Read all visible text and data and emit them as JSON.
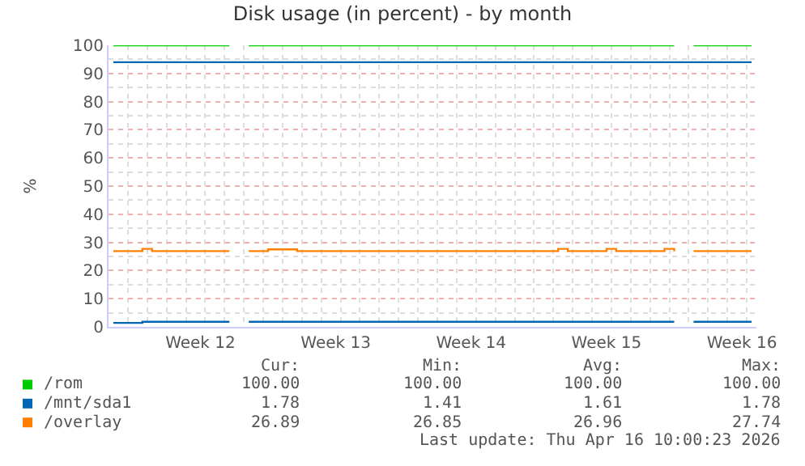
{
  "chart_data": {
    "type": "step",
    "title": "Disk usage (in percent) - by month",
    "ylabel": "%",
    "categories": [
      null,
      null,
      null,
      null,
      null,
      null,
      null,
      null,
      null,
      "Week 12",
      null,
      null,
      null,
      null,
      null,
      null,
      null,
      null,
      null,
      null,
      null,
      null,
      null,
      "Week 13",
      null,
      null,
      null,
      null,
      null,
      null,
      null,
      null,
      null,
      null,
      null,
      null,
      null,
      "Week 14",
      null,
      null,
      null,
      null,
      null,
      null,
      null,
      null,
      null,
      null,
      null,
      null,
      null,
      "Week 15",
      null,
      null,
      null,
      null,
      null,
      null,
      null,
      null,
      null,
      null,
      null,
      null,
      null,
      "Week 16",
      null
    ],
    "series": [
      {
        "name": "/rom",
        "color": "#00cc00",
        "values": [
          100,
          100,
          100,
          100,
          100,
          100,
          100,
          100,
          100,
          100,
          100,
          100,
          100,
          null,
          100,
          100,
          100,
          100,
          100,
          100,
          100,
          100,
          100,
          100,
          100,
          100,
          100,
          100,
          100,
          100,
          100,
          100,
          100,
          100,
          100,
          100,
          100,
          100,
          100,
          100,
          100,
          100,
          100,
          100,
          100,
          100,
          100,
          100,
          100,
          100,
          100,
          100,
          100,
          100,
          100,
          100,
          100,
          100,
          100,
          null,
          100,
          100,
          100,
          100,
          100,
          100,
          100
        ]
      },
      {
        "name": "/mnt/sda1",
        "color": "#0066b3",
        "values": [
          1.4,
          1.4,
          1.4,
          1.8,
          1.8,
          1.8,
          1.8,
          1.8,
          1.8,
          1.8,
          1.8,
          1.8,
          1.8,
          null,
          1.8,
          1.8,
          1.8,
          1.8,
          1.8,
          1.8,
          1.8,
          1.8,
          1.8,
          1.8,
          1.8,
          1.8,
          1.8,
          1.8,
          1.8,
          1.8,
          1.8,
          1.8,
          1.8,
          1.8,
          1.8,
          1.8,
          1.8,
          1.8,
          1.8,
          1.8,
          1.8,
          1.8,
          1.8,
          1.8,
          1.8,
          1.8,
          1.8,
          1.8,
          1.8,
          1.8,
          1.8,
          1.8,
          1.8,
          1.8,
          1.8,
          1.8,
          1.8,
          1.8,
          1.8,
          null,
          1.8,
          1.8,
          1.8,
          1.8,
          1.8,
          1.8,
          1.8
        ]
      },
      {
        "name": "/overlay",
        "color": "#ff8000",
        "values": [
          26.9,
          26.9,
          26.9,
          27.7,
          26.9,
          26.9,
          26.9,
          26.9,
          26.9,
          26.9,
          26.9,
          26.9,
          26.9,
          null,
          26.9,
          26.9,
          27.5,
          27.5,
          27.5,
          26.9,
          26.9,
          26.9,
          26.9,
          26.9,
          26.9,
          26.9,
          26.9,
          26.9,
          26.9,
          26.9,
          26.9,
          26.9,
          26.9,
          26.9,
          26.9,
          26.9,
          26.9,
          26.9,
          26.9,
          26.9,
          26.9,
          26.9,
          26.9,
          26.9,
          26.9,
          26.9,
          27.7,
          26.9,
          26.9,
          26.9,
          26.9,
          27.7,
          26.9,
          26.9,
          26.9,
          26.9,
          26.9,
          27.7,
          26.9,
          null,
          26.9,
          26.9,
          26.9,
          26.9,
          26.9,
          26.9,
          26.9
        ]
      },
      {
        "color": "#0066b3",
        "values": [
          94,
          94,
          94,
          94,
          94,
          94,
          94,
          94,
          94,
          94,
          94,
          94,
          94,
          94,
          94,
          94,
          94,
          94,
          94,
          94,
          94,
          94,
          94,
          94,
          94,
          94,
          94,
          94,
          94,
          94,
          94,
          94,
          94,
          94,
          94,
          94,
          94,
          94,
          94,
          94,
          94,
          94,
          94,
          94,
          94,
          94,
          94,
          94,
          94,
          94,
          94,
          94,
          94,
          94,
          94,
          94,
          94,
          94,
          94,
          94,
          94,
          94,
          94,
          94,
          94,
          94,
          94
        ]
      }
    ],
    "ylim": [
      0,
      100
    ],
    "yticks": [
      0,
      10,
      20,
      30,
      40,
      50,
      60,
      70,
      80,
      90,
      100
    ],
    "grid": true,
    "legend": "bottom left",
    "annotations": [
      "Cur:",
      "Min:",
      "Avg:",
      "Max:",
      "100.00",
      "100.00",
      "100.00",
      "100.00",
      "1.78",
      "1.41",
      "1.61",
      "1.78",
      "26.89",
      "26.85",
      "26.96",
      "27.74",
      "Last update: Thu Apr 16 10:00:23 2026"
    ]
  }
}
